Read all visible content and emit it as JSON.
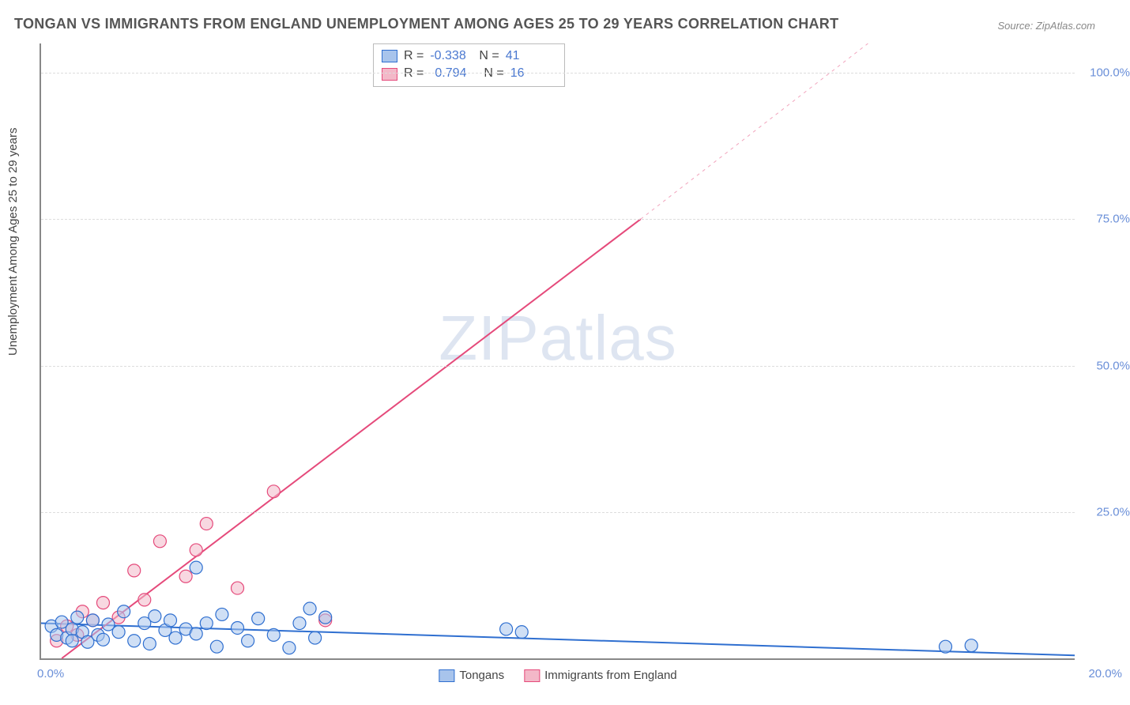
{
  "title": "TONGAN VS IMMIGRANTS FROM ENGLAND UNEMPLOYMENT AMONG AGES 25 TO 29 YEARS CORRELATION CHART",
  "source": "Source: ZipAtlas.com",
  "ylabel": "Unemployment Among Ages 25 to 29 years",
  "watermark_a": "ZIP",
  "watermark_b": "atlas",
  "chart": {
    "type": "scatter",
    "xlim": [
      0,
      20
    ],
    "ylim": [
      0,
      105
    ],
    "xtick_left": "0.0%",
    "xtick_right": "20.0%",
    "yticks": [
      {
        "v": 25,
        "label": "25.0%"
      },
      {
        "v": 50,
        "label": "50.0%"
      },
      {
        "v": 75,
        "label": "75.0%"
      },
      {
        "v": 100,
        "label": "100.0%"
      }
    ],
    "grid_color": "#dddddd",
    "axis_color": "#888888",
    "background_color": "#ffffff",
    "marker_radius": 8,
    "marker_opacity": 0.55,
    "line_width": 2,
    "series": [
      {
        "name": "Tongans",
        "color_fill": "#a8c4ec",
        "color_stroke": "#2f6fd0",
        "line_color": "#2f6fd0",
        "R": "-0.338",
        "N": "41",
        "trend": {
          "x1": 0,
          "y1": 6.0,
          "x2": 20,
          "y2": 0.5
        },
        "points": [
          [
            0.2,
            5.5
          ],
          [
            0.3,
            4.0
          ],
          [
            0.4,
            6.2
          ],
          [
            0.5,
            3.5
          ],
          [
            0.6,
            5.0
          ],
          [
            0.6,
            3.0
          ],
          [
            0.7,
            7.0
          ],
          [
            0.8,
            4.5
          ],
          [
            0.9,
            2.8
          ],
          [
            1.0,
            6.5
          ],
          [
            1.1,
            4.0
          ],
          [
            1.2,
            3.2
          ],
          [
            1.3,
            5.8
          ],
          [
            1.5,
            4.5
          ],
          [
            1.6,
            8.0
          ],
          [
            1.8,
            3.0
          ],
          [
            2.0,
            6.0
          ],
          [
            2.1,
            2.5
          ],
          [
            2.2,
            7.2
          ],
          [
            2.4,
            4.8
          ],
          [
            2.5,
            6.5
          ],
          [
            2.6,
            3.5
          ],
          [
            2.8,
            5.0
          ],
          [
            3.0,
            4.2
          ],
          [
            3.0,
            15.5
          ],
          [
            3.2,
            6.0
          ],
          [
            3.4,
            2.0
          ],
          [
            3.5,
            7.5
          ],
          [
            3.8,
            5.2
          ],
          [
            4.0,
            3.0
          ],
          [
            4.2,
            6.8
          ],
          [
            4.5,
            4.0
          ],
          [
            4.8,
            1.8
          ],
          [
            5.0,
            6.0
          ],
          [
            5.2,
            8.5
          ],
          [
            5.3,
            3.5
          ],
          [
            5.5,
            7.0
          ],
          [
            9.0,
            5.0
          ],
          [
            9.3,
            4.5
          ],
          [
            17.5,
            2.0
          ],
          [
            18.0,
            2.2
          ]
        ]
      },
      {
        "name": "Immigrants from England",
        "color_fill": "#f3b8c8",
        "color_stroke": "#e54a7b",
        "line_color": "#e54a7b",
        "R": "0.794",
        "N": "16",
        "trend": {
          "x1": 0.4,
          "y1": 0,
          "x2": 11.6,
          "y2": 75
        },
        "trend_dash": {
          "x1": 11.6,
          "y1": 75,
          "x2": 16.0,
          "y2": 105
        },
        "points": [
          [
            0.3,
            3.0
          ],
          [
            0.5,
            5.5
          ],
          [
            0.7,
            4.0
          ],
          [
            0.8,
            8.0
          ],
          [
            1.0,
            6.5
          ],
          [
            1.2,
            9.5
          ],
          [
            1.5,
            7.0
          ],
          [
            1.8,
            15.0
          ],
          [
            2.0,
            10.0
          ],
          [
            2.3,
            20.0
          ],
          [
            2.8,
            14.0
          ],
          [
            3.0,
            18.5
          ],
          [
            3.2,
            23.0
          ],
          [
            3.8,
            12.0
          ],
          [
            4.5,
            28.5
          ],
          [
            5.5,
            6.5
          ]
        ]
      }
    ]
  },
  "legend": {
    "series1": "Tongans",
    "series2": "Immigrants from England"
  },
  "stats_labels": {
    "R": "R =",
    "N": "N ="
  }
}
